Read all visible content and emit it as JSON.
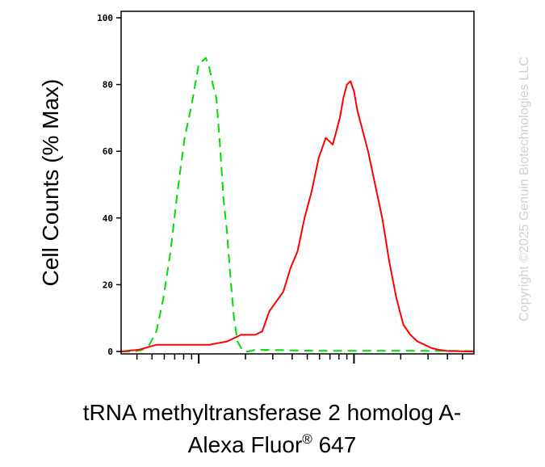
{
  "chart_data": {
    "type": "line",
    "ylabel": "Cell Counts (% Max)",
    "xlabel_line1": "tRNA methyltransferase 2 homolog A-",
    "xlabel_line2_main": "Alexa Fluor",
    "xlabel_line2_sup": "®",
    "xlabel_line2_end": " 647",
    "watermark": "Copyright ©2025 Genuin Biotechnologies LLC",
    "ylim": [
      0,
      100
    ],
    "y_ticks": [
      {
        "value": 0,
        "label": "0"
      },
      {
        "value": 20,
        "label": "20"
      },
      {
        "value": 40,
        "label": "40"
      },
      {
        "value": 60,
        "label": "60"
      },
      {
        "value": 80,
        "label": "80"
      },
      {
        "value": 100,
        "label": "100"
      }
    ],
    "x_scale": "log",
    "xlim": [
      0,
      1
    ],
    "x_decade_positions": [
      0.22,
      0.66
    ],
    "grid": false,
    "series": [
      {
        "color": "#00dd00",
        "style": "dashed",
        "x": [
          0.0,
          0.02,
          0.04,
          0.06,
          0.08,
          0.1,
          0.12,
          0.14,
          0.16,
          0.18,
          0.2,
          0.22,
          0.24,
          0.25,
          0.26,
          0.27,
          0.28,
          0.29,
          0.3,
          0.31,
          0.32,
          0.33,
          0.34,
          0.35,
          0.36,
          0.37,
          0.38,
          0.4,
          0.45,
          0.5,
          0.55,
          0.6,
          0.65,
          0.7,
          0.75,
          0.8,
          0.85,
          0.9,
          0.95,
          1.0
        ],
        "values": [
          0,
          0,
          0,
          0.5,
          2,
          6,
          16,
          30,
          48,
          64,
          74,
          86,
          88,
          85,
          80,
          76,
          62,
          46,
          36,
          22,
          10,
          3,
          1,
          0,
          0,
          0.2,
          0.5,
          0.5,
          0.4,
          0.3,
          0.2,
          0.2,
          0.2,
          0.2,
          0.2,
          0.2,
          0.2,
          0.2,
          0.2,
          0.1
        ]
      },
      {
        "color": "#ff0000",
        "style": "solid",
        "x": [
          0.0,
          0.05,
          0.1,
          0.15,
          0.2,
          0.25,
          0.3,
          0.34,
          0.36,
          0.38,
          0.4,
          0.42,
          0.44,
          0.46,
          0.48,
          0.5,
          0.52,
          0.54,
          0.56,
          0.58,
          0.6,
          0.62,
          0.63,
          0.64,
          0.65,
          0.66,
          0.67,
          0.68,
          0.7,
          0.72,
          0.74,
          0.76,
          0.78,
          0.8,
          0.82,
          0.84,
          0.86,
          0.88,
          0.9,
          0.92,
          0.95,
          0.98,
          1.0
        ],
        "values": [
          0,
          0.5,
          2,
          2,
          2,
          2,
          3,
          5,
          5,
          5,
          6,
          12,
          15,
          18,
          25,
          30,
          40,
          48,
          58,
          64,
          62,
          70,
          76,
          80,
          81,
          78,
          72,
          68,
          60,
          50,
          40,
          27,
          16,
          8,
          5,
          3,
          2,
          1,
          0.5,
          0.2,
          0.1,
          0,
          0
        ]
      }
    ]
  }
}
